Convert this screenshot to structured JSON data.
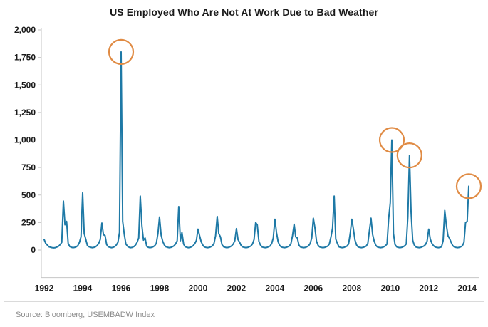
{
  "chart_data": {
    "type": "line",
    "title": "US Employed Who Are Not At Work Due to Bad Weather",
    "source": "Source: Bloomberg, USEMBADW Index",
    "frequency": "monthly",
    "x_start": "1992-01",
    "x_end": "2014-02",
    "x_tick_labels": [
      "1992",
      "1994",
      "1996",
      "1998",
      "2000",
      "2002",
      "2004",
      "2006",
      "2008",
      "2010",
      "2012",
      "2014"
    ],
    "y_ticks": [
      0,
      250,
      500,
      750,
      1000,
      1250,
      1500,
      1750,
      2000
    ],
    "y_tick_labels": [
      "0",
      "250",
      "500",
      "750",
      "1,000",
      "1,250",
      "1,500",
      "1,750",
      "2,000"
    ],
    "ylim": [
      -250,
      2000
    ],
    "grid": false,
    "legend": false,
    "series": [
      {
        "name": "US employed not at work due to bad weather",
        "values": [
          95,
          60,
          45,
          30,
          25,
          22,
          20,
          22,
          28,
          35,
          50,
          70,
          445,
          230,
          260,
          60,
          32,
          25,
          22,
          24,
          30,
          40,
          70,
          120,
          520,
          150,
          95,
          40,
          30,
          25,
          22,
          24,
          30,
          40,
          60,
          95,
          245,
          140,
          130,
          50,
          30,
          25,
          22,
          24,
          32,
          45,
          70,
          160,
          1800,
          260,
          140,
          55,
          35,
          25,
          22,
          24,
          32,
          45,
          70,
          110,
          490,
          220,
          90,
          110,
          35,
          25,
          22,
          24,
          30,
          40,
          60,
          150,
          300,
          135,
          80,
          45,
          30,
          25,
          22,
          24,
          30,
          38,
          55,
          85,
          395,
          85,
          160,
          55,
          30,
          25,
          22,
          24,
          30,
          40,
          58,
          88,
          190,
          130,
          75,
          45,
          28,
          24,
          22,
          24,
          30,
          38,
          60,
          130,
          305,
          150,
          120,
          50,
          30,
          25,
          22,
          24,
          30,
          38,
          55,
          85,
          195,
          95,
          70,
          40,
          28,
          24,
          22,
          24,
          30,
          36,
          55,
          95,
          250,
          230,
          80,
          45,
          28,
          24,
          22,
          24,
          30,
          36,
          60,
          110,
          280,
          160,
          75,
          42,
          28,
          24,
          22,
          24,
          30,
          36,
          58,
          130,
          235,
          120,
          110,
          45,
          28,
          24,
          22,
          24,
          30,
          38,
          58,
          110,
          290,
          200,
          80,
          42,
          28,
          24,
          22,
          24,
          30,
          36,
          55,
          120,
          200,
          490,
          100,
          60,
          30,
          24,
          22,
          24,
          30,
          36,
          55,
          150,
          280,
          190,
          90,
          45,
          28,
          24,
          22,
          24,
          30,
          36,
          60,
          180,
          290,
          140,
          80,
          42,
          28,
          24,
          22,
          24,
          30,
          38,
          55,
          280,
          430,
          1000,
          150,
          50,
          30,
          24,
          22,
          24,
          30,
          38,
          55,
          300,
          860,
          350,
          90,
          45,
          28,
          24,
          22,
          24,
          30,
          36,
          50,
          80,
          190,
          100,
          60,
          40,
          28,
          24,
          22,
          24,
          30,
          85,
          360,
          230,
          130,
          105,
          70,
          40,
          28,
          24,
          22,
          24,
          30,
          38,
          70,
          250,
          260,
          580
        ]
      }
    ],
    "annotations": [
      {
        "type": "circle",
        "period": "1996-01",
        "index": 48,
        "value": 1800
      },
      {
        "type": "circle",
        "period": "2010-02",
        "index": 217,
        "value": 1000
      },
      {
        "type": "circle",
        "period": "2011-01",
        "index": 228,
        "value": 860
      },
      {
        "type": "circle",
        "period": "2014-02",
        "index": 265,
        "value": 580
      }
    ],
    "colors": {
      "line": "#1e79a6",
      "annotation": "#e08b44",
      "axis": "#c6c6c6",
      "tick_text": "#1a1a1a",
      "source_text": "#8c8c8c",
      "divider": "#dadada"
    }
  }
}
